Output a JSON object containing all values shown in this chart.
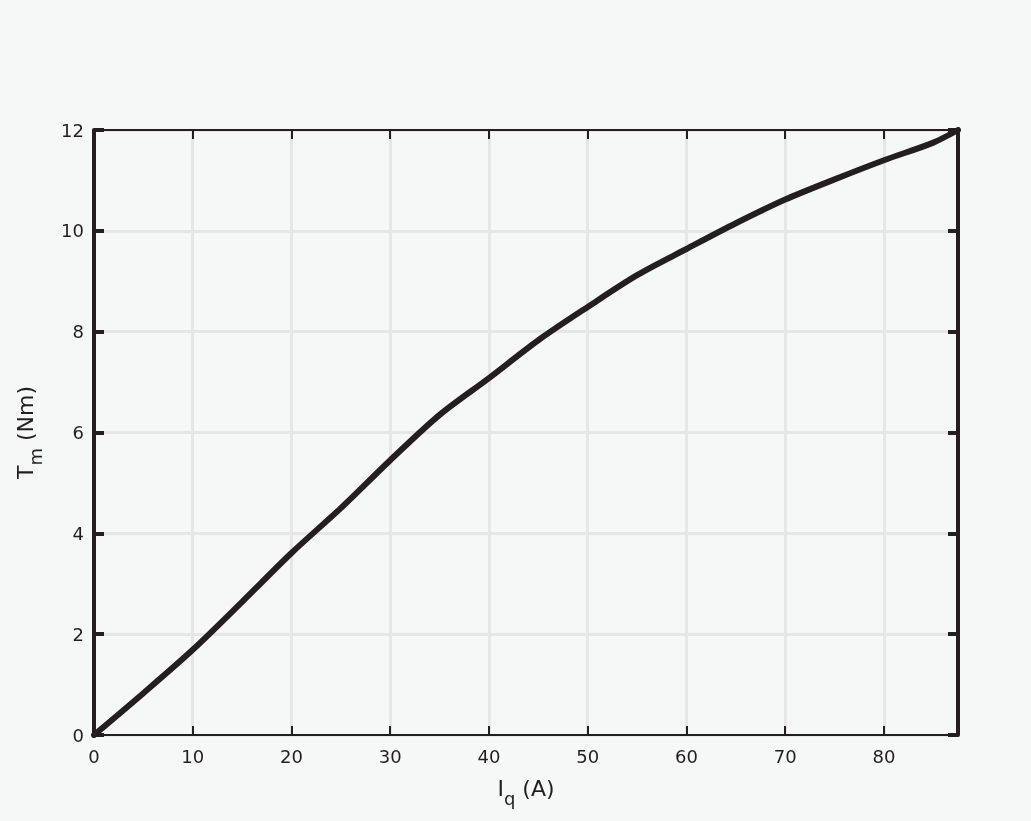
{
  "chart_data": {
    "type": "line",
    "xlabel": "I$_{q}$ (A)",
    "ylabel": "T$_{m}$ (Nm)",
    "x": [
      0,
      5,
      10,
      15,
      20,
      25,
      30,
      35,
      40,
      45,
      50,
      55,
      60,
      65,
      70,
      75,
      80,
      85,
      87.5
    ],
    "series": [
      {
        "color": "#231f20",
        "values": [
          0,
          0.83,
          1.69,
          2.64,
          3.61,
          4.5,
          5.45,
          6.35,
          7.08,
          7.83,
          8.49,
          9.12,
          9.64,
          10.15,
          10.62,
          11.02,
          11.4,
          11.75,
          12
        ]
      }
    ],
    "xlim": [
      0,
      87.5
    ],
    "xticks": [
      0,
      10,
      20,
      30,
      40,
      50,
      60,
      70,
      80
    ],
    "ylim": [
      0,
      12
    ],
    "yticks": [
      0,
      2,
      4,
      6,
      8,
      10,
      12
    ],
    "grid": true,
    "marker": "none"
  }
}
